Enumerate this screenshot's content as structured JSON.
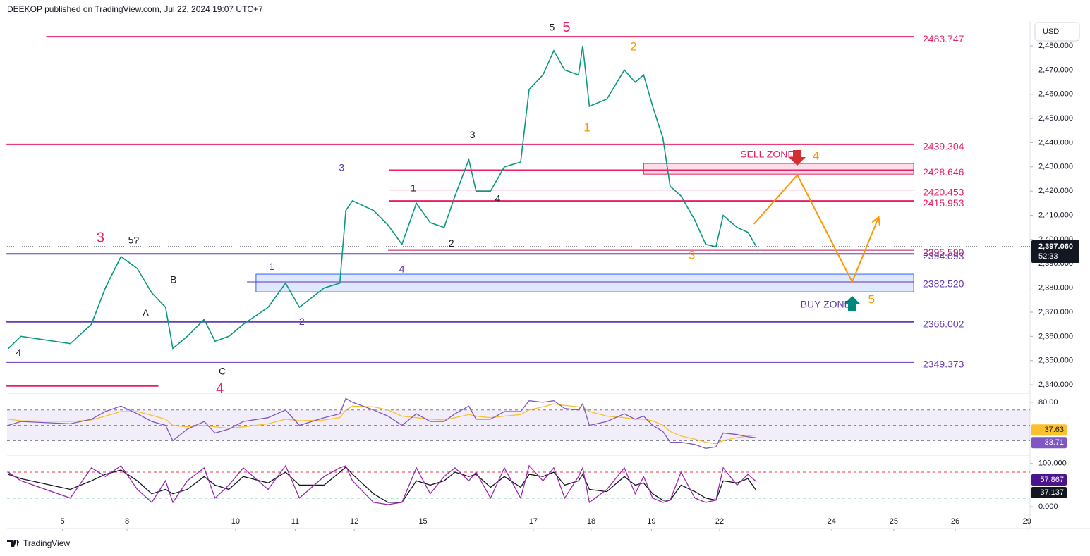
{
  "header": {
    "text": "DEEKOP published on TradingView.com, Jul 22, 2024 19:07 UTC+7"
  },
  "footer": {
    "brand": "TradingView"
  },
  "chart_data": [
    {
      "type": "line",
      "currency": "USD",
      "color": "#089981",
      "x": [
        -0.9,
        -0.69,
        0.13,
        0.48,
        0.71,
        0.97,
        1.24,
        1.48,
        1.71,
        1.83,
        2.07,
        2.35,
        2.53,
        2.76,
        3.0,
        3.41,
        3.7,
        3.93,
        4.34,
        4.6,
        4.7,
        4.81,
        5.16,
        5.4,
        5.63,
        5.87,
        6.1,
        6.33,
        6.51,
        6.74,
        6.86,
        7.1,
        7.33,
        7.6,
        7.74,
        7.97,
        8.15,
        8.33,
        8.56,
        8.63,
        8.74,
        9.03,
        9.32,
        9.5,
        9.64,
        9.79,
        9.96,
        10.08,
        10.26,
        10.49,
        10.67,
        10.84,
        10.96,
        11.19,
        11.37,
        11.51
      ],
      "values": [
        2355,
        2360,
        2357,
        2365,
        2380,
        2393,
        2388,
        2378,
        2372,
        2355,
        2360,
        2367,
        2358,
        2360,
        2365,
        2372,
        2382,
        2372,
        2380,
        2382,
        2412,
        2416,
        2412,
        2406,
        2398,
        2415,
        2407,
        2405,
        2418,
        2433,
        2420,
        2420,
        2430,
        2432,
        2462,
        2468,
        2478,
        2470,
        2468,
        2480,
        2455,
        2458,
        2470,
        2465,
        2468,
        2455,
        2442,
        2422,
        2418,
        2408,
        2398,
        2397,
        2410,
        2405,
        2403,
        2397.06
      ],
      "xlim": [
        -0.92,
        16.05
      ],
      "xticks": [
        {
          "value": 0,
          "label": "5"
        },
        {
          "value": 1.07,
          "label": "8"
        },
        {
          "value": 2.87,
          "label": "10"
        },
        {
          "value": 3.86,
          "label": "11"
        },
        {
          "value": 4.84,
          "label": "12"
        },
        {
          "value": 5.98,
          "label": "15"
        },
        {
          "value": 7.81,
          "label": "17"
        },
        {
          "value": 8.77,
          "label": "18"
        },
        {
          "value": 9.77,
          "label": "19"
        },
        {
          "value": 10.9,
          "label": "22"
        },
        {
          "value": 12.76,
          "label": "24"
        },
        {
          "value": 13.79,
          "label": "25"
        },
        {
          "value": 14.81,
          "label": "26"
        },
        {
          "value": 16.0,
          "label": "29"
        }
      ],
      "ylim": [
        2337.4,
        2490.2
      ],
      "yticks": [
        {
          "value": 2340,
          "label": "2,340.000"
        },
        {
          "value": 2350,
          "label": "2,350.000"
        },
        {
          "value": 2360,
          "label": "2,360.000"
        },
        {
          "value": 2370,
          "label": "2,370.000"
        },
        {
          "value": 2380,
          "label": "2,380.000"
        },
        {
          "value": 2390,
          "label": "2,390.000"
        },
        {
          "value": 2400,
          "label": "2,400.000"
        },
        {
          "value": 2410,
          "label": "2,410.000"
        },
        {
          "value": 2420,
          "label": "2,420.000"
        },
        {
          "value": 2430,
          "label": "2,430.000"
        },
        {
          "value": 2440,
          "label": "2,440.000"
        },
        {
          "value": 2450,
          "label": "2,450.000"
        },
        {
          "value": 2460,
          "label": "2,460.000"
        },
        {
          "value": 2470,
          "label": "2,470.000"
        },
        {
          "value": 2480,
          "label": "2,480.000"
        }
      ],
      "current": {
        "value": 2397.06,
        "label": "2,397.060",
        "countdown": "52:33"
      },
      "levels": [
        {
          "value": 2483.747,
          "label": "2483.747",
          "color": "#e91e63",
          "width": 2,
          "from": -0.27,
          "to": 14.12
        },
        {
          "value": 2439.304,
          "label": "2439.304",
          "color": "#e91e63",
          "width": 2,
          "from": -0.93,
          "to": 14.12
        },
        {
          "value": 2428.646,
          "label": "2428.646",
          "color": "#e91e63",
          "width": 2,
          "from": 5.42,
          "to": 14.12
        },
        {
          "value": 2420.453,
          "label": "2420.453",
          "color": "#e91e63",
          "width": 1,
          "from": 5.42,
          "to": 14.12
        },
        {
          "value": 2415.953,
          "label": "2415.953",
          "color": "#e91e63",
          "width": 2,
          "from": 5.42,
          "to": 14.12
        },
        {
          "value": 2395.59,
          "label": "2395.590",
          "color": "#c2185b",
          "width": 1,
          "from": 5.4,
          "to": 14.12
        },
        {
          "value": 2394.093,
          "label": "2394.093",
          "color": "#673ab7",
          "width": 2,
          "from": -0.93,
          "to": 14.12
        },
        {
          "value": 2382.52,
          "label": "2382.520",
          "color": "#5e35b1",
          "width": 1,
          "from": 3.06,
          "to": 14.12
        },
        {
          "value": 2366.002,
          "label": "2366.002",
          "color": "#673ab7",
          "width": 2,
          "from": -0.93,
          "to": 14.12
        },
        {
          "value": 2349.373,
          "label": "2349.373",
          "color": "#673ab7",
          "width": 2,
          "from": -0.93,
          "to": 14.12
        },
        {
          "value": 2339.5,
          "color": "#e91e63",
          "width": 2,
          "from": -0.93,
          "to": 1.59
        }
      ],
      "zones": [
        {
          "from": 9.64,
          "to": 14.12,
          "low": 2427.0,
          "high": 2431.4,
          "color": "#e91e63"
        },
        {
          "from": 3.21,
          "to": 14.12,
          "low": 2378.4,
          "high": 2385.7,
          "color": "#2962ff"
        }
      ],
      "projection": {
        "x": [
          11.47,
          12.19,
          13.1,
          13.54
        ],
        "values": [
          2406.4,
          2426.7,
          2382.5,
          2409.3
        ],
        "color": "#ff9800"
      },
      "annotations": [
        {
          "text": "5",
          "x": 8.12,
          "y": 2487.3,
          "color": "#131722"
        },
        {
          "text": "5",
          "x": 8.36,
          "y": 2487.3,
          "color": "#e91e63"
        },
        {
          "text": "2",
          "x": 9.47,
          "y": 2479.4,
          "color": "#ff9800"
        },
        {
          "text": "1",
          "x": 8.7,
          "y": 2446,
          "color": "#ff9800"
        },
        {
          "text": "3",
          "x": 6.8,
          "y": 2443,
          "color": "#131722"
        },
        {
          "text": "3",
          "x": 4.63,
          "y": 2429.4,
          "color": "#5e35b1"
        },
        {
          "text": "1",
          "x": 5.82,
          "y": 2421,
          "color": "#131722"
        },
        {
          "text": "4",
          "x": 7.22,
          "y": 2416.6,
          "color": "#131722"
        },
        {
          "text": "2",
          "x": 6.45,
          "y": 2398.2,
          "color": "#131722"
        },
        {
          "text": "4",
          "x": 5.63,
          "y": 2387.5,
          "color": "#5e35b1"
        },
        {
          "text": "3",
          "x": 0.63,
          "y": 2400.5,
          "color": "#e91e63"
        },
        {
          "text": "5?",
          "x": 1.18,
          "y": 2399.4,
          "color": "#131722"
        },
        {
          "text": "1",
          "x": 3.47,
          "y": 2388.6,
          "color": "#5e35b1"
        },
        {
          "text": "2",
          "x": 3.97,
          "y": 2365.9,
          "color": "#5e35b1"
        },
        {
          "text": "B",
          "x": 1.84,
          "y": 2383.1,
          "color": "#131722"
        },
        {
          "text": "A",
          "x": 1.38,
          "y": 2369.4,
          "color": "#131722"
        },
        {
          "text": "4",
          "x": -0.73,
          "y": 2353.1,
          "color": "#131722"
        },
        {
          "text": "C",
          "x": 2.65,
          "y": 2345.3,
          "color": "#131722"
        },
        {
          "text": "4",
          "x": 2.61,
          "y": 2338,
          "color": "#e91e63"
        },
        {
          "text": "3",
          "x": 10.44,
          "y": 2393.3,
          "color": "#ff9800"
        },
        {
          "text": "SELL ZONE",
          "x": 11.69,
          "y": 2434.9,
          "color": "#e91e63"
        },
        {
          "text": "4",
          "x": 12.5,
          "y": 2434.3,
          "color": "#ff9800"
        },
        {
          "text": "BUY ZONE",
          "x": 12.66,
          "y": 2372.9,
          "color": "#5e35b1"
        },
        {
          "text": "5",
          "x": 13.42,
          "y": 2374.9,
          "color": "#ff9800"
        }
      ]
    },
    {
      "type": "line",
      "ylim": [
        12,
        90
      ],
      "yticks": [
        {
          "value": 80,
          "label": "80.00"
        }
      ],
      "levels": [
        70,
        50,
        30
      ],
      "band_color": "#7e57c2",
      "series": [
        {
          "color": "#7e57c2",
          "values": [
            50,
            55,
            52,
            58,
            68,
            75,
            65,
            55,
            50,
            30,
            45,
            55,
            40,
            45,
            55,
            60,
            70,
            50,
            60,
            65,
            85,
            80,
            70,
            62,
            50,
            65,
            55,
            55,
            65,
            75,
            58,
            58,
            68,
            68,
            82,
            80,
            82,
            72,
            70,
            78,
            50,
            55,
            65,
            58,
            62,
            50,
            42,
            28,
            28,
            25,
            20,
            22,
            40,
            38,
            35,
            33.71
          ]
        },
        {
          "color": "#fbc02d",
          "values": [
            58,
            56,
            55,
            57,
            62,
            68,
            68,
            63,
            58,
            50,
            48,
            50,
            48,
            46,
            48,
            52,
            58,
            56,
            57,
            60,
            70,
            75,
            74,
            70,
            62,
            60,
            58,
            57,
            60,
            64,
            62,
            60,
            62,
            64,
            70,
            74,
            78,
            76,
            74,
            74,
            68,
            62,
            60,
            58,
            58,
            56,
            50,
            42,
            36,
            32,
            28,
            26,
            30,
            34,
            36,
            37.63
          ]
        }
      ]
    },
    {
      "type": "line",
      "ylim": [
        -31,
        116
      ],
      "yticks": [
        {
          "value": 100,
          "label": "100.000"
        },
        {
          "value": 0,
          "label": "0.000"
        }
      ],
      "levels": [
        {
          "value": 80,
          "color": "#f23645"
        },
        {
          "value": 20,
          "color": "#089981"
        }
      ],
      "series": [
        {
          "color": "#9c27b0",
          "label_color": "#4a148c",
          "values": [
            80,
            60,
            20,
            90,
            70,
            95,
            40,
            10,
            60,
            10,
            60,
            90,
            20,
            50,
            90,
            40,
            95,
            20,
            70,
            90,
            95,
            60,
            10,
            5,
            10,
            90,
            30,
            70,
            90,
            60,
            80,
            20,
            90,
            20,
            95,
            60,
            90,
            20,
            70,
            90,
            10,
            40,
            90,
            30,
            70,
            20,
            10,
            15,
            80,
            20,
            10,
            15,
            90,
            50,
            75,
            57.867
          ]
        },
        {
          "color": "#131722",
          "label_color": "#131722",
          "values": [
            75,
            65,
            40,
            60,
            75,
            85,
            60,
            30,
            40,
            30,
            40,
            70,
            50,
            40,
            70,
            55,
            80,
            50,
            50,
            80,
            92,
            75,
            30,
            10,
            10,
            60,
            50,
            60,
            80,
            70,
            75,
            45,
            70,
            45,
            75,
            70,
            80,
            50,
            60,
            75,
            40,
            35,
            70,
            50,
            55,
            30,
            15,
            15,
            50,
            35,
            20,
            15,
            60,
            55,
            65,
            37.137
          ]
        }
      ]
    }
  ]
}
